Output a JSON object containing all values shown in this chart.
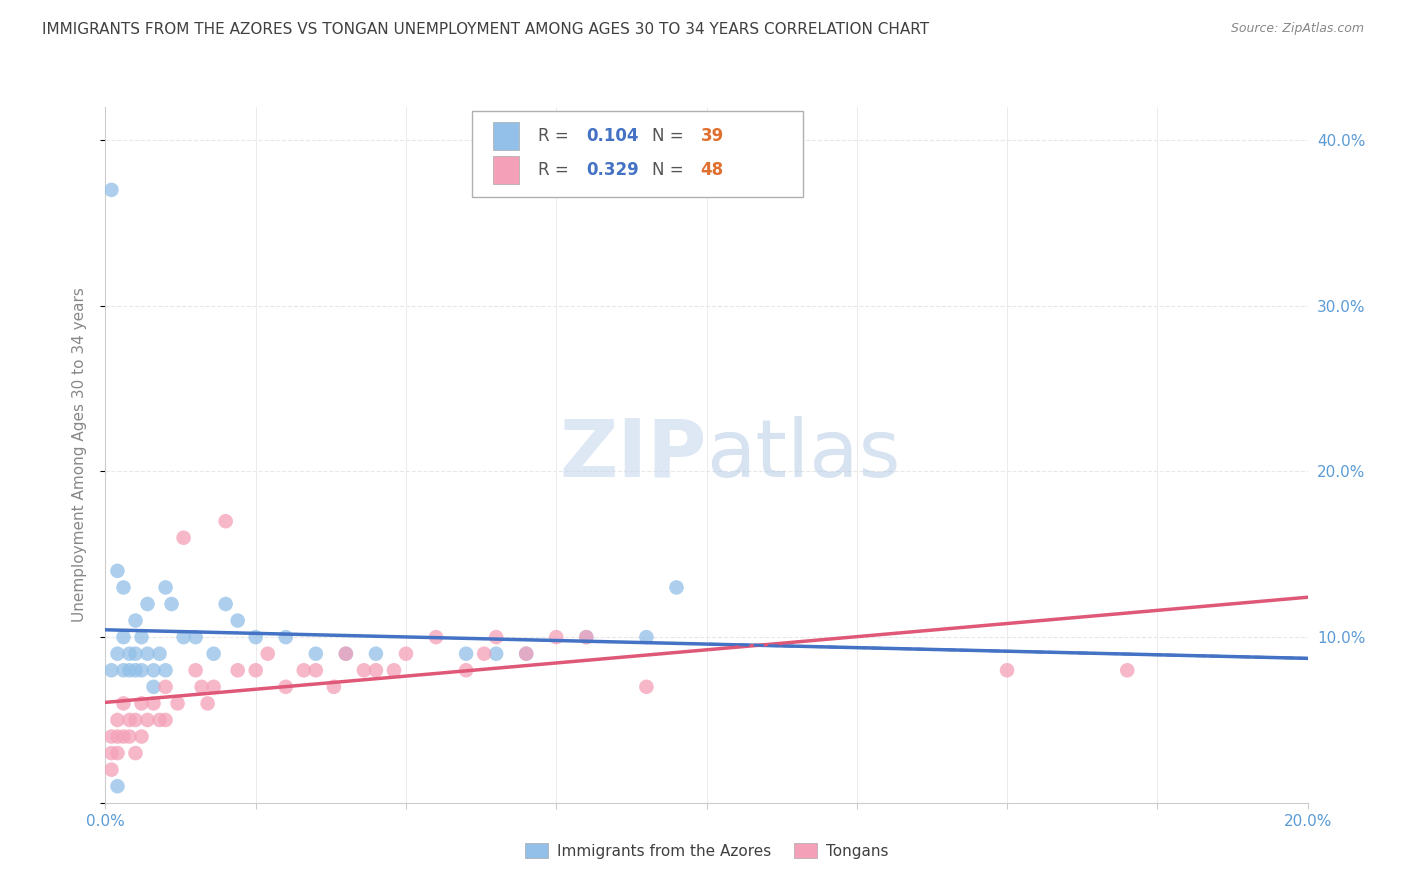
{
  "title": "IMMIGRANTS FROM THE AZORES VS TONGAN UNEMPLOYMENT AMONG AGES 30 TO 34 YEARS CORRELATION CHART",
  "source": "Source: ZipAtlas.com",
  "ylabel": "Unemployment Among Ages 30 to 34 years",
  "xlim": [
    0.0,
    0.2
  ],
  "ylim": [
    0.0,
    0.42
  ],
  "xticks": [
    0.0,
    0.025,
    0.05,
    0.075,
    0.1,
    0.125,
    0.15,
    0.175,
    0.2
  ],
  "xtick_labels": [
    "0.0%",
    "",
    "",
    "",
    "",
    "",
    "",
    "",
    "20.0%"
  ],
  "yticks": [
    0.0,
    0.1,
    0.2,
    0.3,
    0.4
  ],
  "ytick_labels_right": [
    "",
    "10.0%",
    "20.0%",
    "30.0%",
    "40.0%"
  ],
  "color_azores": "#92c0e8",
  "color_tongan": "#f4a0b8",
  "color_line_azores": "#4472c4",
  "color_line_tongan": "#e05878",
  "color_title": "#404040",
  "color_source": "#888888",
  "color_axis_label": "#888888",
  "color_tick": "#5b9bd5",
  "color_grid": "#e8e8e8",
  "azores_x": [
    0.001,
    0.001,
    0.002,
    0.002,
    0.003,
    0.003,
    0.003,
    0.004,
    0.004,
    0.005,
    0.005,
    0.005,
    0.006,
    0.006,
    0.007,
    0.007,
    0.008,
    0.008,
    0.009,
    0.01,
    0.01,
    0.011,
    0.013,
    0.015,
    0.018,
    0.02,
    0.022,
    0.025,
    0.03,
    0.035,
    0.04,
    0.045,
    0.06,
    0.065,
    0.07,
    0.08,
    0.09,
    0.095,
    0.002
  ],
  "azores_y": [
    0.37,
    0.08,
    0.14,
    0.09,
    0.13,
    0.1,
    0.08,
    0.09,
    0.08,
    0.11,
    0.09,
    0.08,
    0.1,
    0.08,
    0.12,
    0.09,
    0.08,
    0.07,
    0.09,
    0.13,
    0.08,
    0.12,
    0.1,
    0.1,
    0.09,
    0.12,
    0.11,
    0.1,
    0.1,
    0.09,
    0.09,
    0.09,
    0.09,
    0.09,
    0.09,
    0.1,
    0.1,
    0.13,
    0.01
  ],
  "tongan_x": [
    0.001,
    0.001,
    0.001,
    0.002,
    0.002,
    0.002,
    0.003,
    0.003,
    0.004,
    0.004,
    0.005,
    0.005,
    0.006,
    0.006,
    0.007,
    0.008,
    0.009,
    0.01,
    0.01,
    0.012,
    0.013,
    0.015,
    0.016,
    0.017,
    0.018,
    0.02,
    0.022,
    0.025,
    0.027,
    0.03,
    0.033,
    0.035,
    0.038,
    0.04,
    0.043,
    0.045,
    0.048,
    0.05,
    0.055,
    0.06,
    0.063,
    0.065,
    0.07,
    0.075,
    0.08,
    0.09,
    0.15,
    0.17
  ],
  "tongan_y": [
    0.04,
    0.03,
    0.02,
    0.05,
    0.04,
    0.03,
    0.06,
    0.04,
    0.05,
    0.04,
    0.05,
    0.03,
    0.06,
    0.04,
    0.05,
    0.06,
    0.05,
    0.07,
    0.05,
    0.06,
    0.16,
    0.08,
    0.07,
    0.06,
    0.07,
    0.17,
    0.08,
    0.08,
    0.09,
    0.07,
    0.08,
    0.08,
    0.07,
    0.09,
    0.08,
    0.08,
    0.08,
    0.09,
    0.1,
    0.08,
    0.09,
    0.1,
    0.09,
    0.1,
    0.1,
    0.07,
    0.08,
    0.08
  ]
}
